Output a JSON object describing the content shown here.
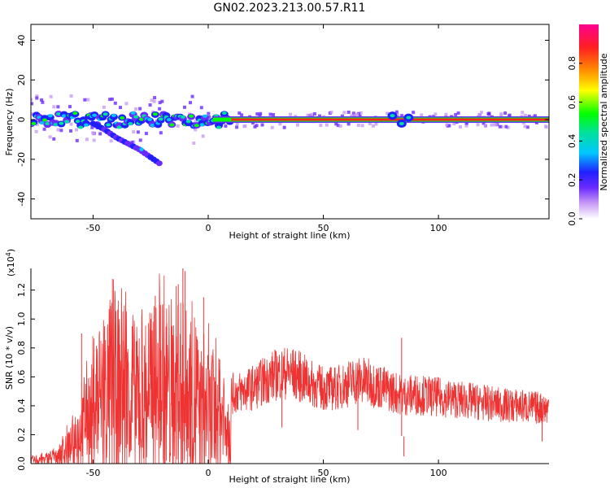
{
  "title": "GN02.2023.213.00.57.R11",
  "chart_data": [
    {
      "type": "heatmap",
      "description_panel": "top",
      "xlabel": "Height of straight line (km)",
      "ylabel": "Frequency (Hz)",
      "xlim": [
        -77,
        148
      ],
      "ylim": [
        -50,
        48
      ],
      "xticks": [
        -50,
        0,
        50,
        100
      ],
      "yticks": [
        -40,
        -20,
        0,
        20,
        40
      ],
      "colorbar": {
        "label": "Normalized spectral amplitude",
        "range": [
          0.0,
          1.0
        ],
        "ticks": [
          "0.0",
          "0.2",
          "0.4",
          "0.6",
          "0.8"
        ],
        "colors": [
          "#ffffff",
          "#c89bf5",
          "#6a2bff",
          "#2020ff",
          "#00c8ff",
          "#00e0a0",
          "#00ff00",
          "#ffff00",
          "#ff9000",
          "#ff2020",
          "#ff0090"
        ]
      },
      "main_band": {
        "frequency_hz": 0,
        "x_range": [
          -77,
          148
        ],
        "strong_from_x": 10
      },
      "drift_trace": {
        "points": [
          [
            -50,
            -2
          ],
          [
            -45,
            -5
          ],
          [
            -40,
            -9
          ],
          [
            -35,
            -12
          ],
          [
            -30,
            -15
          ],
          [
            -25,
            -19
          ],
          [
            -20,
            -23
          ]
        ]
      }
    },
    {
      "type": "line",
      "description_panel": "bottom",
      "xlabel": "Height of straight line (km)",
      "ylabel": "SNR (10 * v/v)",
      "multiplier_label": "(x10",
      "multiplier_exp": "4",
      "xlim": [
        -77,
        148
      ],
      "ylim": [
        0,
        1.35
      ],
      "xticks": [
        -50,
        0,
        50,
        100
      ],
      "yticks": [
        "0.0",
        "0.2",
        "0.4",
        "0.6",
        "0.8",
        "1.0",
        "1.2"
      ],
      "series": [
        {
          "color": "#ee3333",
          "envelope": [
            [
              -77,
              0.03
            ],
            [
              -70,
              0.05
            ],
            [
              -65,
              0.08
            ],
            [
              -60,
              0.18
            ],
            [
              -55,
              0.35
            ],
            [
              -50,
              0.55
            ],
            [
              -45,
              0.75
            ],
            [
              -40,
              0.8
            ],
            [
              -35,
              0.75
            ],
            [
              -30,
              0.65
            ],
            [
              -25,
              0.7
            ],
            [
              -20,
              0.75
            ],
            [
              -15,
              0.72
            ],
            [
              -10,
              0.7
            ],
            [
              -5,
              0.62
            ],
            [
              0,
              0.55
            ],
            [
              5,
              0.48
            ],
            [
              10,
              0.48
            ],
            [
              15,
              0.5
            ],
            [
              20,
              0.53
            ],
            [
              25,
              0.58
            ],
            [
              30,
              0.62
            ],
            [
              35,
              0.63
            ],
            [
              40,
              0.6
            ],
            [
              45,
              0.55
            ],
            [
              50,
              0.52
            ],
            [
              55,
              0.52
            ],
            [
              60,
              0.55
            ],
            [
              65,
              0.58
            ],
            [
              70,
              0.56
            ],
            [
              75,
              0.53
            ],
            [
              80,
              0.5
            ],
            [
              85,
              0.47
            ],
            [
              90,
              0.48
            ],
            [
              95,
              0.47
            ],
            [
              100,
              0.46
            ],
            [
              105,
              0.45
            ],
            [
              110,
              0.44
            ],
            [
              115,
              0.43
            ],
            [
              120,
              0.42
            ],
            [
              125,
              0.41
            ],
            [
              130,
              0.4
            ],
            [
              135,
              0.4
            ],
            [
              140,
              0.39
            ],
            [
              148,
              0.38
            ]
          ],
          "spikes": [
            [
              -55,
              0.9
            ],
            [
              -45,
              0.95
            ],
            [
              -43,
              0.6
            ],
            [
              -37,
              0.85
            ],
            [
              -33,
              0.95
            ],
            [
              -25,
              0.93
            ],
            [
              -23,
              1.16
            ],
            [
              -21,
              0.8
            ],
            [
              -18,
              0.97
            ],
            [
              -13,
              1.24
            ],
            [
              -11,
              1.35
            ],
            [
              -10,
              1.33
            ],
            [
              -5,
              0.88
            ],
            [
              -2,
              1.15
            ],
            [
              5,
              0.72
            ],
            [
              32,
              0.72
            ],
            [
              65,
              0.65
            ],
            [
              84,
              0.87
            ],
            [
              85,
              0.05
            ],
            [
              145,
              0.45
            ]
          ]
        }
      ]
    }
  ]
}
